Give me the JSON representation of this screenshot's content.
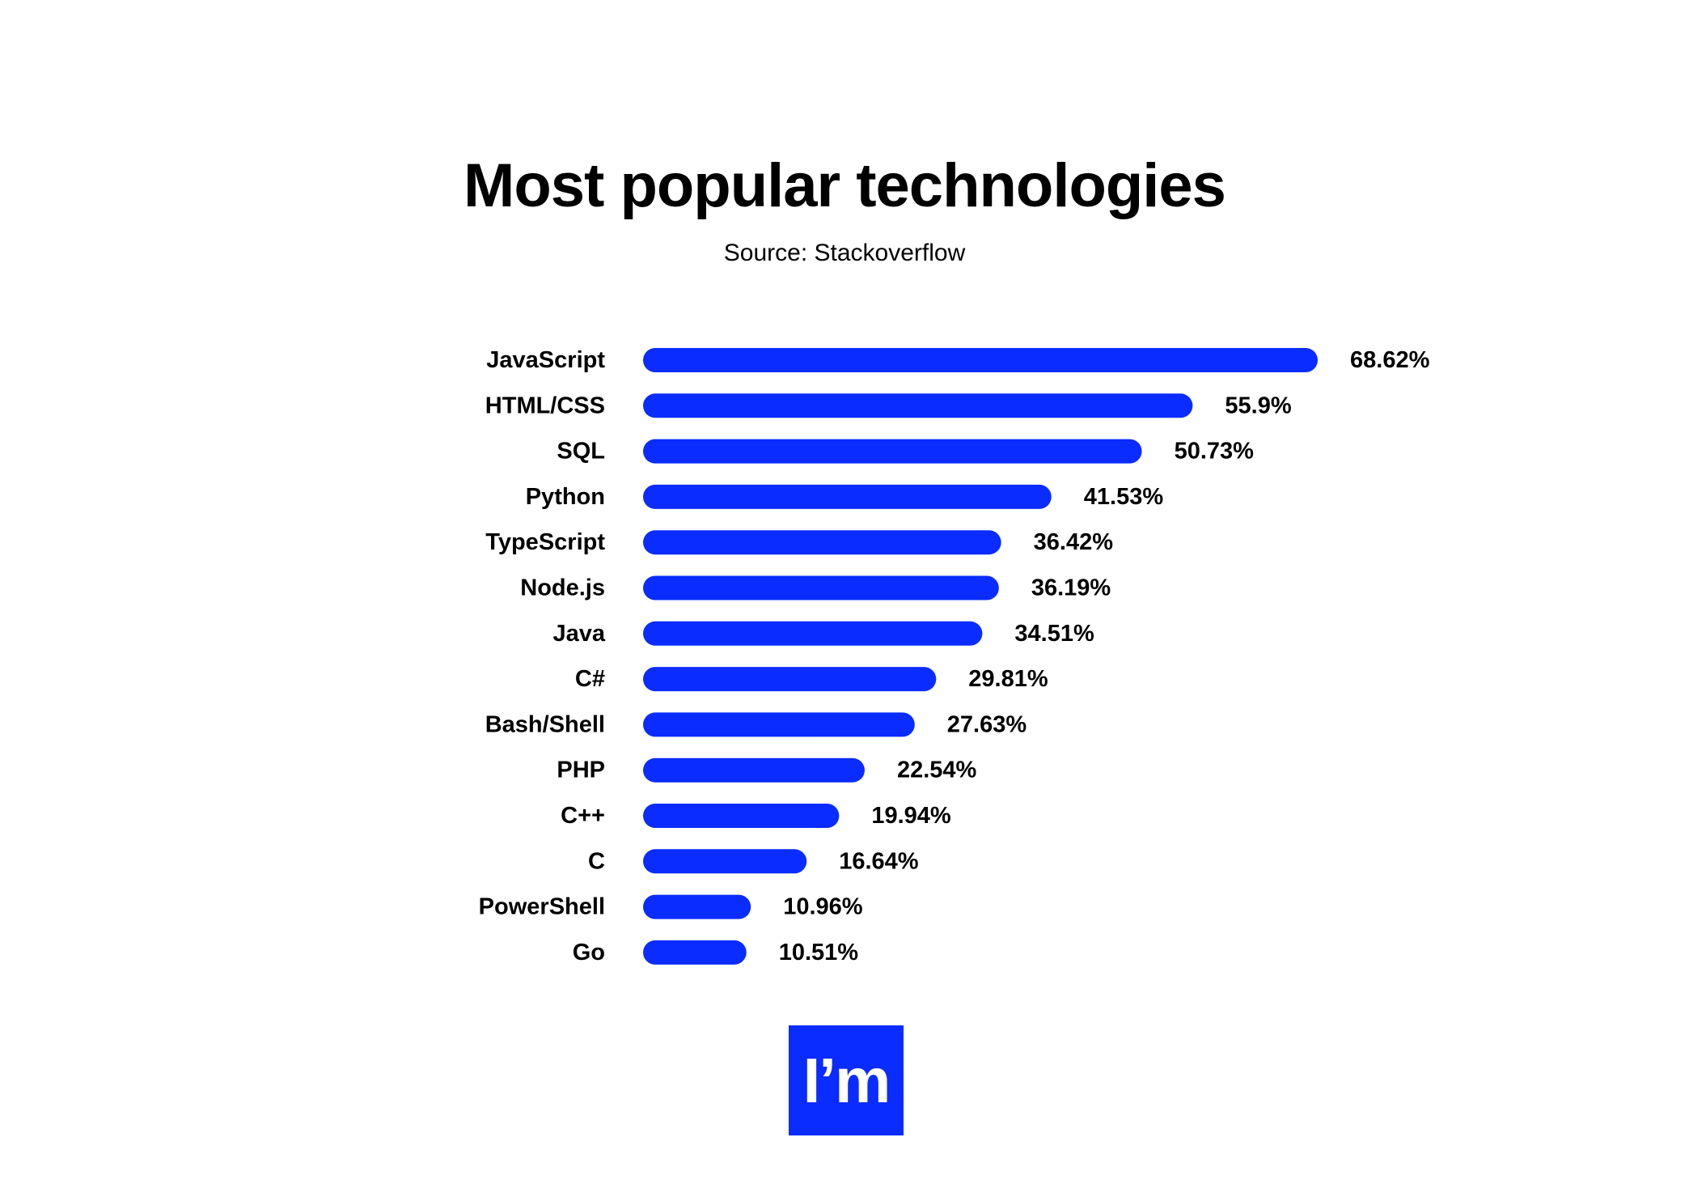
{
  "chart_data": {
    "type": "bar",
    "orientation": "horizontal",
    "title": "Most popular technologies",
    "subtitle": "Source: Stackoverflow",
    "categories": [
      "JavaScript",
      "HTML/CSS",
      "SQL",
      "Python",
      "TypeScript",
      "Node.js",
      "Java",
      "C#",
      "Bash/Shell",
      "PHP",
      "C++",
      "C",
      "PowerShell",
      "Go"
    ],
    "values": [
      68.62,
      55.9,
      50.73,
      41.53,
      36.42,
      36.19,
      34.51,
      29.81,
      27.63,
      22.54,
      19.94,
      16.64,
      10.96,
      10.51
    ],
    "value_labels": [
      "68.62%",
      "55.9%",
      "50.73%",
      "41.53%",
      "36.42%",
      "36.19%",
      "34.51%",
      "29.81%",
      "27.63%",
      "22.54%",
      "19.94%",
      "16.64%",
      "10.96%",
      "10.51%"
    ],
    "xlim": [
      0,
      68.62
    ],
    "bar_color": "#0a2cff",
    "grid": false
  },
  "logo": {
    "text": "I’m",
    "background": "#0a2cff",
    "color": "#ffffff"
  }
}
